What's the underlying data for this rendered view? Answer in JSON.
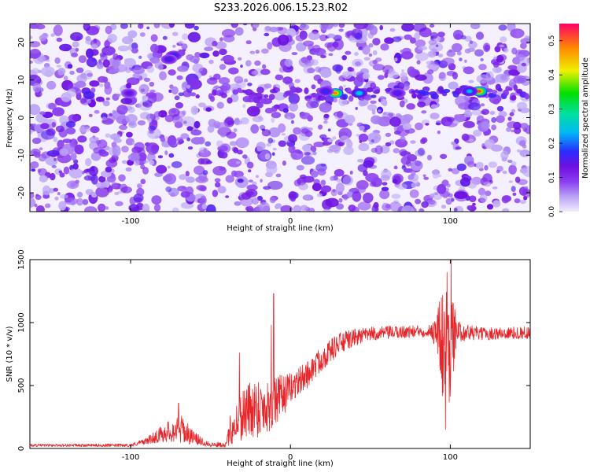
{
  "page": {
    "title": "S233.2026.006.15.23.R02"
  },
  "chart_data": [
    {
      "type": "heatmap",
      "title": "S233.2026.006.15.23.R02",
      "xlabel": "Height of straight line (km)",
      "ylabel": "Frequency (Hz)",
      "xlim": [
        -163,
        150
      ],
      "ylim": [
        -25,
        25
      ],
      "xticks": [
        -100,
        0,
        100
      ],
      "yticks": [
        -20,
        -10,
        0,
        10,
        20
      ],
      "colorbar": {
        "label": "Normalized spectral amplitude",
        "range": [
          0,
          0.55
        ],
        "ticks": [
          0.0,
          0.1,
          0.2,
          0.3,
          0.4,
          0.5
        ],
        "colormap": [
          "#f2ecff",
          "#b9a3f5",
          "#8a3ef0",
          "#6f10e0",
          "#2a2cff",
          "#00b8f5",
          "#00e0a0",
          "#00e000",
          "#f0f000",
          "#ff8800",
          "#ff0066"
        ]
      },
      "ridge": {
        "frequency_hz": 6,
        "start_km": -50,
        "peaks": [
          {
            "x": 28,
            "y": 6.5,
            "amplitude": 0.5
          },
          {
            "x": 118,
            "y": 7,
            "amplitude": 0.52
          },
          {
            "x": 43,
            "y": 6.5,
            "amplitude": 0.3
          },
          {
            "x": 112,
            "y": 7,
            "amplitude": 0.28
          },
          {
            "x": 22,
            "y": 7,
            "amplitude": 0.22
          },
          {
            "x": 67,
            "y": 6.5,
            "amplitude": 0.2
          },
          {
            "x": -73,
            "y": 16.5,
            "amplitude": 0.22
          },
          {
            "x": -76,
            "y": 15.5,
            "amplitude": 0.2
          },
          {
            "x": -101,
            "y": 6.5,
            "amplitude": 0.18
          }
        ]
      }
    },
    {
      "type": "line",
      "xlabel": "Height of straight line (km)",
      "ylabel": "SNR (10 * v/v)",
      "xlim": [
        -163,
        150
      ],
      "ylim": [
        0,
        1500
      ],
      "xticks": [
        -100,
        0,
        100
      ],
      "yticks": [
        0,
        500,
        1000,
        1500
      ],
      "color": "#e8262a",
      "profile": [
        {
          "x": -163,
          "y": 25,
          "noise": 10
        },
        {
          "x": -100,
          "y": 25,
          "noise": 12
        },
        {
          "x": -90,
          "y": 60,
          "noise": 25
        },
        {
          "x": -78,
          "y": 130,
          "noise": 80
        },
        {
          "x": -68,
          "y": 150,
          "noise": 110
        },
        {
          "x": -60,
          "y": 80,
          "noise": 50
        },
        {
          "x": -50,
          "y": 30,
          "noise": 20
        },
        {
          "x": -40,
          "y": 30,
          "noise": 20
        },
        {
          "x": -38,
          "y": 140,
          "noise": 120
        },
        {
          "x": -30,
          "y": 280,
          "noise": 220
        },
        {
          "x": -22,
          "y": 330,
          "noise": 250
        },
        {
          "x": -15,
          "y": 330,
          "noise": 220
        },
        {
          "x": -8,
          "y": 380,
          "noise": 200
        },
        {
          "x": 0,
          "y": 480,
          "noise": 120
        },
        {
          "x": 10,
          "y": 580,
          "noise": 110
        },
        {
          "x": 20,
          "y": 720,
          "noise": 100
        },
        {
          "x": 30,
          "y": 830,
          "noise": 90
        },
        {
          "x": 40,
          "y": 880,
          "noise": 70
        },
        {
          "x": 50,
          "y": 910,
          "noise": 55
        },
        {
          "x": 70,
          "y": 925,
          "noise": 50
        },
        {
          "x": 88,
          "y": 935,
          "noise": 50
        },
        {
          "x": 91,
          "y": 930,
          "noise": 150
        },
        {
          "x": 95,
          "y": 850,
          "noise": 450
        },
        {
          "x": 100,
          "y": 850,
          "noise": 500
        },
        {
          "x": 104,
          "y": 930,
          "noise": 80
        },
        {
          "x": 120,
          "y": 910,
          "noise": 50
        },
        {
          "x": 150,
          "y": 920,
          "noise": 50
        }
      ],
      "spikes": [
        {
          "x": -10.5,
          "y": 1230
        },
        {
          "x": -12,
          "y": 980
        },
        {
          "x": -32,
          "y": 760
        },
        {
          "x": -70,
          "y": 360
        },
        {
          "x": 98,
          "y": 1400
        },
        {
          "x": 100.5,
          "y": 1500
        },
        {
          "x": 97,
          "y": 150
        }
      ]
    }
  ]
}
